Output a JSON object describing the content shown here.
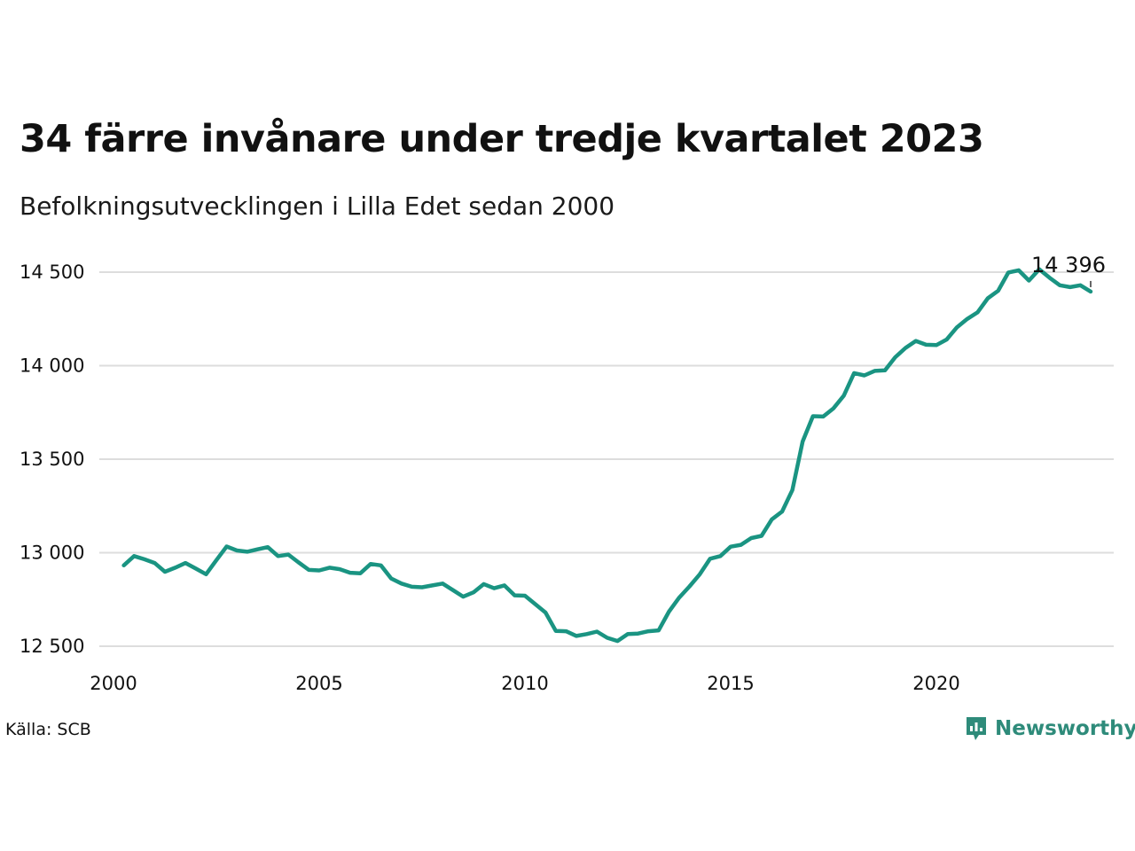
{
  "header": {
    "title": "34 färre invånare under tredje kvartalet 2023",
    "subtitle": "Befolkningsutvecklingen i Lilla Edet sedan 2000"
  },
  "footer": {
    "source": "Källa: SCB",
    "brand": "Newsworthy"
  },
  "colors": {
    "line": "#1a9482",
    "grid": "#dddddd",
    "brand": "#2e8b7a"
  },
  "chart_data": {
    "type": "line",
    "title": "34 färre invånare under tredje kvartalet 2023",
    "subtitle": "Befolkningsutvecklingen i Lilla Edet sedan 2000",
    "xlim": [
      2000,
      2024.5
    ],
    "ylim": [
      12450,
      14600
    ],
    "x_ticks": [
      2000,
      2005,
      2010,
      2015,
      2020
    ],
    "x_tick_labels": [
      "2000",
      "2005",
      "2010",
      "2015",
      "2020"
    ],
    "y_ticks": [
      12500,
      13000,
      13500,
      14000,
      14500
    ],
    "y_tick_labels": [
      "12 500",
      "13 000",
      "13 500",
      "14 000",
      "14 500"
    ],
    "grid": "horizontal",
    "end_label": "14 396",
    "series": [
      {
        "x": [
          2000.25,
          2000.5,
          2000.75,
          2001.0,
          2001.25,
          2001.5,
          2001.75,
          2002.0,
          2002.25,
          2002.5,
          2002.75,
          2003.0,
          2003.25,
          2003.5,
          2003.75,
          2004.0,
          2004.25,
          2004.5,
          2004.75,
          2005.0,
          2005.25,
          2005.5,
          2005.75,
          2006.0,
          2006.25,
          2006.5,
          2006.75,
          2007.0,
          2007.25,
          2007.5,
          2007.75,
          2008.0,
          2008.25,
          2008.5,
          2008.75,
          2009.0,
          2009.25,
          2009.5,
          2009.75,
          2010.0,
          2010.25,
          2010.5,
          2010.75,
          2011.0,
          2011.25,
          2011.5,
          2011.75,
          2012.0,
          2012.25,
          2012.5,
          2012.75,
          2013.0,
          2013.25,
          2013.5,
          2013.75,
          2014.0,
          2014.25,
          2014.5,
          2014.75,
          2015.0,
          2015.25,
          2015.5,
          2015.75,
          2016.0,
          2016.25,
          2016.5,
          2016.75,
          2017.0,
          2017.25,
          2017.5,
          2017.75,
          2018.0,
          2018.25,
          2018.5,
          2018.75,
          2019.0,
          2019.25,
          2019.5,
          2019.75,
          2020.0,
          2020.25,
          2020.5,
          2020.75,
          2021.0,
          2021.25,
          2021.5,
          2021.75,
          2022.0,
          2022.25,
          2022.5,
          2022.75,
          2023.0,
          2023.25,
          2023.5,
          2023.75
        ],
        "y": [
          12932,
          12982,
          12965,
          12945,
          12898,
          12920,
          12945,
          12915,
          12885,
          12960,
          13033,
          13012,
          13005,
          13018,
          13030,
          12982,
          12990,
          12948,
          12908,
          12905,
          12920,
          12912,
          12893,
          12890,
          12940,
          12932,
          12862,
          12835,
          12818,
          12815,
          12825,
          12835,
          12800,
          12765,
          12788,
          12832,
          12810,
          12825,
          12772,
          12770,
          12725,
          12680,
          12582,
          12580,
          12555,
          12565,
          12578,
          12545,
          12528,
          12565,
          12568,
          12580,
          12585,
          12685,
          12760,
          12820,
          12885,
          12968,
          12982,
          13032,
          13042,
          13078,
          13090,
          13178,
          13220,
          13335,
          13595,
          13730,
          13728,
          13772,
          13840,
          13960,
          13948,
          13972,
          13975,
          14045,
          14095,
          14132,
          14112,
          14110,
          14140,
          14205,
          14250,
          14285,
          14360,
          14400,
          14498,
          14510,
          14455,
          14515,
          14470,
          14430,
          14420,
          14430,
          14396
        ]
      }
    ]
  }
}
